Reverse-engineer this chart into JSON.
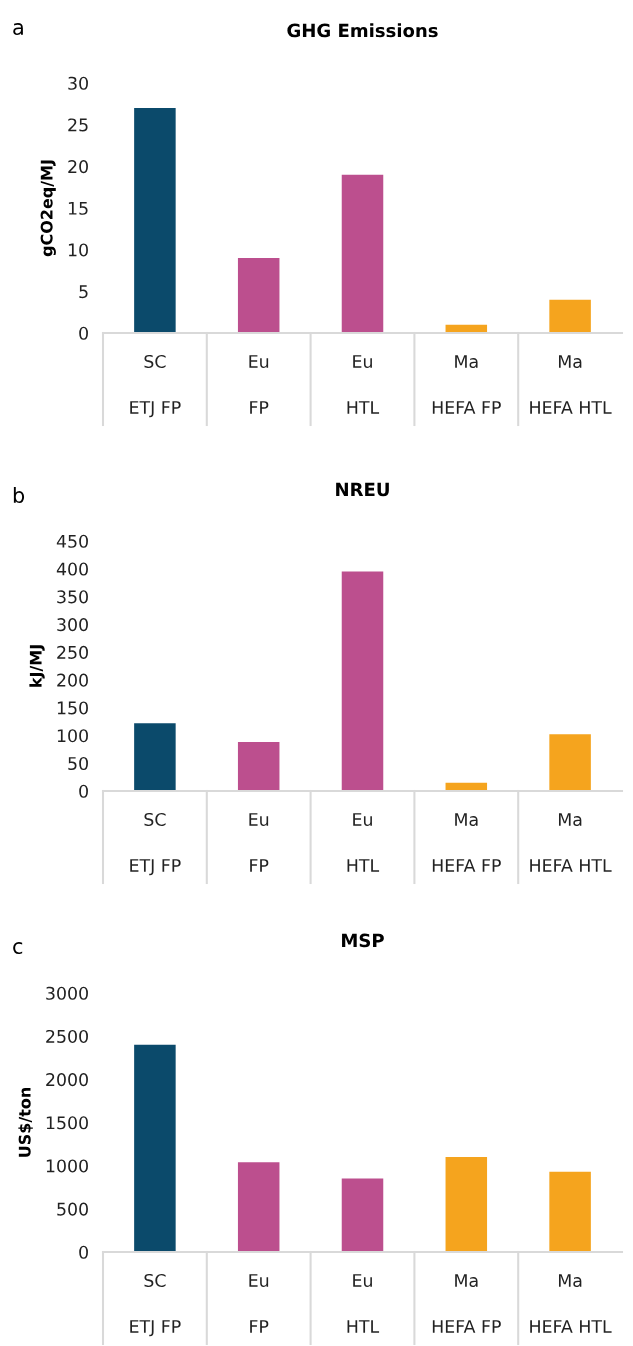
{
  "chart_data": [
    {
      "type": "bar",
      "title": "GHG Emissions",
      "ylabel": "gCO2eq/MJ",
      "annotations": [
        "a"
      ],
      "categories": [
        "SC\nETJ FP",
        "Eu\nFP",
        "Eu\nHTL",
        "Ma\nHEFA FP",
        "Ma\nHEFA HTL"
      ],
      "values": [
        27,
        9,
        19,
        1,
        4
      ],
      "colors": [
        "#0b4a6b",
        "#bc4f8e",
        "#bc4f8e",
        "#f5a41e",
        "#f5a41e"
      ],
      "ylim": [
        0,
        30
      ],
      "yticks": [
        0,
        5,
        10,
        15,
        20,
        25,
        30
      ],
      "grid": false
    },
    {
      "type": "bar",
      "title": "NREU",
      "ylabel": "kJ/MJ",
      "annotations": [
        "b"
      ],
      "categories": [
        "SC\nETJ FP",
        "Eu\nFP",
        "Eu\nHTL",
        "Ma\nHEFA FP",
        "Ma\nHEFA HTL"
      ],
      "values": [
        122,
        88,
        395,
        15,
        102
      ],
      "colors": [
        "#0b4a6b",
        "#bc4f8e",
        "#bc4f8e",
        "#f5a41e",
        "#f5a41e"
      ],
      "ylim": [
        0,
        450
      ],
      "yticks": [
        0,
        50,
        100,
        150,
        200,
        250,
        300,
        350,
        400,
        450
      ],
      "grid": false
    },
    {
      "type": "bar",
      "title": "MSP",
      "ylabel": "US$/ton",
      "annotations": [
        "c"
      ],
      "categories": [
        "SC\nETJ FP",
        "Eu\nFP",
        "Eu\nHTL",
        "Ma\nHEFA FP",
        "Ma\nHEFA HTL"
      ],
      "values": [
        2400,
        1040,
        850,
        1100,
        930
      ],
      "colors": [
        "#0b4a6b",
        "#bc4f8e",
        "#bc4f8e",
        "#f5a41e",
        "#f5a41e"
      ],
      "ylim": [
        0,
        3000
      ],
      "yticks": [
        0,
        500,
        1000,
        1500,
        2000,
        2500,
        3000
      ],
      "grid": false
    }
  ]
}
